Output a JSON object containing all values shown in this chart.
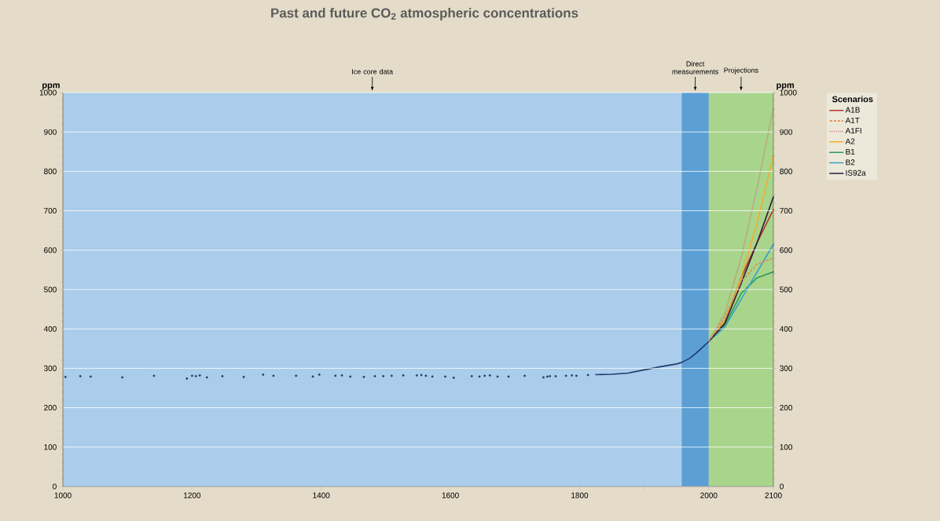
{
  "chart_data": {
    "type": "line",
    "title": "Past and future CO$_{2}$ atmospheric concentrations",
    "ylabel": "ppm",
    "y2label": "ppm",
    "legend_title": "Scenarios",
    "xlim": [
      1000,
      2100
    ],
    "ylim": [
      0,
      1000
    ],
    "y2lim": [
      0,
      1000
    ],
    "xticks": [
      1000,
      1200,
      1400,
      1600,
      1800,
      {
        "value": 1900,
        "label": null
      },
      2000,
      2100
    ],
    "yticks": [
      0,
      100,
      200,
      300,
      400,
      500,
      600,
      700,
      800,
      900,
      1000
    ],
    "y2ticks": [
      0,
      100,
      200,
      300,
      400,
      500,
      600,
      700,
      800,
      900,
      1000
    ],
    "grid": "y",
    "legend": "top right",
    "marker": "none",
    "bands": [
      {
        "axis": "x",
        "from": 1000,
        "to": 1958,
        "label": "Ice core data",
        "color": "#a9cdea"
      },
      {
        "axis": "x",
        "from": 1958,
        "to": 2000,
        "label": "Direct measurements",
        "color": "#5b9fd5"
      },
      {
        "axis": "x",
        "from": 2000,
        "to": 2100,
        "label": "Projections",
        "color": "#a9d48c"
      }
    ],
    "series": [
      {
        "type": "scatter",
        "color": "#1f3a6a",
        "x": [
          1004,
          1027,
          1043,
          1092,
          1141,
          1192,
          1200,
          1206,
          1212,
          1223,
          1247,
          1280,
          1310,
          1326,
          1361,
          1387,
          1397,
          1422,
          1432,
          1445,
          1466,
          1483,
          1496,
          1509,
          1527,
          1548,
          1555,
          1562,
          1572,
          1592,
          1605,
          1633,
          1645,
          1653,
          1661,
          1673,
          1690,
          1715,
          1744,
          1750,
          1754,
          1763,
          1779,
          1788,
          1795,
          1813
        ],
        "values": [
          278,
          280,
          279,
          277,
          281,
          274,
          281,
          280,
          282,
          277,
          280,
          278,
          284,
          281,
          281,
          279,
          284,
          281,
          282,
          279,
          278,
          280,
          280,
          281,
          282,
          282,
          283,
          281,
          279,
          279,
          276,
          280,
          279,
          281,
          282,
          279,
          279,
          281,
          277,
          279,
          280,
          280,
          281,
          282,
          281,
          283
        ]
      },
      {
        "type": "line",
        "color": "#1f3a6a",
        "x": [
          1825,
          1850,
          1875,
          1900,
          1925,
          1950,
          1958,
          1970,
          1980,
          1990,
          2000
        ],
        "values": [
          284,
          285,
          288,
          296,
          304,
          311,
          315,
          325,
          338,
          353,
          368
        ]
      },
      {
        "name": "A1B",
        "color": "#b8322a",
        "x": [
          2000,
          2025,
          2050,
          2075,
          2100
        ],
        "values": [
          368,
          420,
          530,
          620,
          703
        ]
      },
      {
        "name": "A1T",
        "color": "#e0884a",
        "line_style": "dashed",
        "x": [
          2000,
          2025,
          2050,
          2075,
          2100
        ],
        "values": [
          368,
          430,
          520,
          565,
          580
        ]
      },
      {
        "name": "A1FI",
        "color": "#c87060",
        "line_style": "dotted",
        "x": [
          2000,
          2025,
          2050,
          2075,
          2100
        ],
        "values": [
          368,
          440,
          580,
          760,
          960
        ]
      },
      {
        "name": "A2",
        "color": "#f0b028",
        "x": [
          2000,
          2025,
          2050,
          2075,
          2100
        ],
        "values": [
          368,
          420,
          530,
          670,
          840
        ]
      },
      {
        "name": "B1",
        "color": "#2a9a5a",
        "x": [
          2000,
          2025,
          2050,
          2075,
          2100
        ],
        "values": [
          368,
          410,
          490,
          530,
          545
        ]
      },
      {
        "name": "B2",
        "color": "#3aa0c8",
        "x": [
          2000,
          2025,
          2050,
          2075,
          2100
        ],
        "values": [
          368,
          405,
          475,
          545,
          615
        ]
      },
      {
        "name": "IS92a",
        "color": "#2a1a3a",
        "x": [
          2000,
          2025,
          2050,
          2075,
          2100
        ],
        "values": [
          368,
          415,
          515,
          620,
          735
        ]
      }
    ]
  }
}
